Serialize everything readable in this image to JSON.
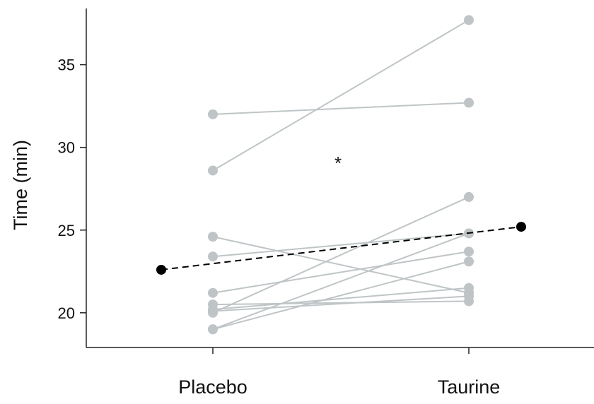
{
  "chart_data": {
    "type": "line",
    "title": "",
    "xlabel": "",
    "ylabel": "Time (min)",
    "categories": [
      "Placebo",
      "Taurine"
    ],
    "ylim": [
      17.9,
      38.4
    ],
    "yticks": [
      20,
      25,
      30,
      35
    ],
    "grid": false,
    "legend": "none",
    "individual_color": "#bfc5c7",
    "mean_color": "#000000",
    "individuals": [
      {
        "values": [
          32.0,
          32.7
        ]
      },
      {
        "values": [
          28.6,
          37.7
        ]
      },
      {
        "values": [
          24.6,
          21.2
        ]
      },
      {
        "values": [
          23.4,
          24.8
        ]
      },
      {
        "values": [
          21.2,
          23.7
        ]
      },
      {
        "values": [
          20.5,
          20.7
        ]
      },
      {
        "values": [
          20.2,
          21.5
        ]
      },
      {
        "values": [
          20.0,
          27.0
        ]
      },
      {
        "values": [
          19.0,
          24.8
        ]
      },
      {
        "values": [
          19.0,
          23.1
        ]
      },
      {
        "values": [
          20.1,
          21.0
        ]
      }
    ],
    "mean": {
      "values": [
        22.6,
        25.2
      ]
    },
    "annotation": "*"
  }
}
